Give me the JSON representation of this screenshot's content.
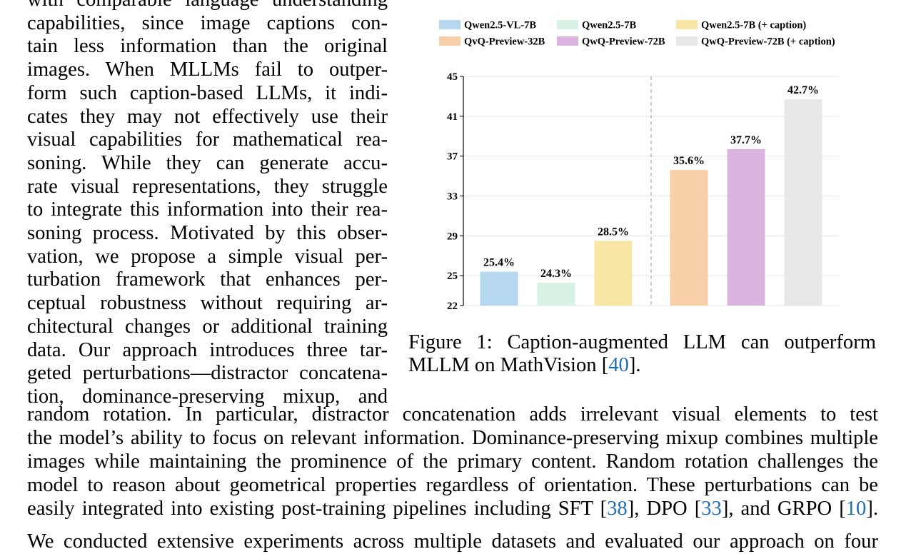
{
  "body_text": {
    "left_lines": [
      "with comparable language understanding",
      "capabilities, since image captions con-",
      "tain less information than the original",
      "images.  When MLLMs fail to outper-",
      "form such caption-based LLMs, it indi-",
      "cates they may not effectively use their",
      "visual capabilities for mathematical rea-",
      "soning.  While they can generate accu-",
      "rate visual representations, they struggle",
      "to integrate this information into their rea-",
      "soning process.  Motivated by this obser-",
      "vation, we propose a simple visual per-",
      "turbation framework that enhances per-",
      "ceptual robustness without requiring ar-",
      "chitectural changes or additional training",
      "data.  Our approach introduces three tar-",
      "geted perturbations—distractor concatena-",
      "tion, dominance-preserving mixup, and"
    ],
    "wide_lines": [
      "random rotation.  In particular, distractor concatenation adds irrelevant visual elements to test",
      "the model’s ability to focus on relevant information. Dominance-preserving mixup combines multiple",
      "images while maintaining the prominence of the primary content. Random rotation challenges the",
      "model to reason about geometrical properties regardless of orientation. These perturbations can be"
    ],
    "final_line": {
      "p1": "easily integrated into existing post-training pipelines including SFT [",
      "c1": "38",
      "p2": "], DPO [",
      "c2": "33",
      "p3": "], and GRPO [",
      "c3": "10",
      "p4": "]."
    },
    "next_para": "We conducted extensive experiments across multiple datasets and evaluated our approach on four"
  },
  "figure": {
    "caption_line1": "Figure 1:  Caption-augmented LLM can outperform",
    "caption_line2_text": "MLLM on MathVision [",
    "caption_line2_cite": "40",
    "caption_line2_end": "]."
  },
  "chart_data": {
    "type": "bar",
    "categories": [
      "Qwen2.5-VL-7B",
      "Qwen2.5-7B",
      "Qwen2.5-7B (+ caption)",
      "QvQ-Preview-32B",
      "QwQ-Preview-72B",
      "QwQ-Preview-72B (+ caption)"
    ],
    "values": [
      25.4,
      24.3,
      28.5,
      35.6,
      37.7,
      42.7
    ],
    "data_labels": [
      "25.4%",
      "24.3%",
      "28.5%",
      "35.6%",
      "37.7%",
      "42.7%"
    ],
    "colors": [
      "#b5d7f0",
      "#d8f3e6",
      "#f8e6a4",
      "#f7cfa9",
      "#dbb5e0",
      "#e8e8e8"
    ],
    "ylim": [
      22,
      45
    ],
    "yticks": [
      22,
      25,
      29,
      33,
      37,
      41,
      45
    ],
    "legend_position": "top",
    "grid": true,
    "separator_after_index": 2
  }
}
